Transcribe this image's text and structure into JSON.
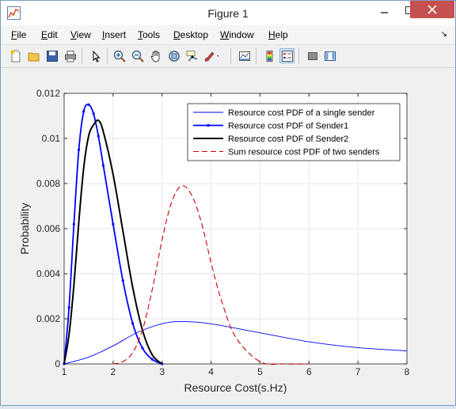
{
  "window": {
    "title": "Figure 1"
  },
  "menu": [
    "File",
    "Edit",
    "View",
    "Insert",
    "Tools",
    "Desktop",
    "Window",
    "Help"
  ],
  "menu_mnemonics": [
    "F",
    "E",
    "V",
    "I",
    "T",
    "D",
    "W",
    "H"
  ],
  "toolbar_icons": [
    "new-figure-icon",
    "open-file-icon",
    "save-icon",
    "print-icon",
    "edit-plot-arrow-icon",
    "zoom-in-icon",
    "zoom-out-icon",
    "pan-hand-icon",
    "rotate-3d-icon",
    "data-cursor-icon",
    "brush-icon",
    "link-plot-icon",
    "insert-colorbar-icon",
    "insert-legend-icon",
    "hide-plot-tools-icon",
    "show-plot-tools-icon"
  ],
  "chart_data": {
    "type": "line",
    "xlabel": "Resource Cost(s.Hz)",
    "ylabel": "Probability",
    "xlim": [
      1,
      8
    ],
    "ylim": [
      0,
      0.012
    ],
    "xticks": [
      "1",
      "2",
      "3",
      "4",
      "5",
      "6",
      "7",
      "8"
    ],
    "yticks": [
      "0",
      "0.002",
      "0.004",
      "0.006",
      "0.008",
      "0.01",
      "0.012"
    ],
    "grid": true,
    "legend_position": "top-right",
    "series": [
      {
        "name": "Resource cost PDF of a single sender",
        "color": "#0000ff",
        "style": "thin",
        "x": [
          1.0,
          1.5,
          2.0,
          2.5,
          3.0,
          3.4,
          4.0,
          5.0,
          6.0,
          7.0,
          8.0
        ],
        "y": [
          0.0,
          0.0003,
          0.0008,
          0.0014,
          0.00178,
          0.00188,
          0.00178,
          0.00138,
          0.00098,
          0.00072,
          0.00058
        ]
      },
      {
        "name": "Resource cost PDF of Sender1",
        "color": "#0000ff",
        "style": "dotted-marker",
        "x": [
          1.0,
          1.1,
          1.2,
          1.3,
          1.4,
          1.5,
          1.6,
          1.7,
          1.8,
          2.0,
          2.2,
          2.4,
          2.6,
          2.8,
          3.0
        ],
        "y": [
          0.0,
          0.0025,
          0.0062,
          0.0095,
          0.0112,
          0.0115,
          0.0111,
          0.0101,
          0.0088,
          0.0062,
          0.0037,
          0.0018,
          0.0007,
          0.0002,
          0.0
        ]
      },
      {
        "name": "Resource cost PDF of Sender2",
        "color": "#000000",
        "style": "thick",
        "x": [
          1.0,
          1.1,
          1.2,
          1.3,
          1.4,
          1.5,
          1.6,
          1.7,
          1.8,
          2.0,
          2.2,
          2.4,
          2.6,
          2.8,
          3.0
        ],
        "y": [
          0.0,
          0.0013,
          0.0035,
          0.0063,
          0.0087,
          0.0101,
          0.0106,
          0.0108,
          0.0103,
          0.0084,
          0.0059,
          0.0034,
          0.0015,
          0.0004,
          0.0
        ]
      },
      {
        "name": "Sum resource cost PDF of two senders",
        "color": "#cc0000",
        "style": "dashed",
        "x": [
          2.0,
          2.2,
          2.4,
          2.6,
          2.8,
          3.0,
          3.2,
          3.4,
          3.6,
          3.8,
          4.0,
          4.2,
          4.5,
          5.0,
          5.5,
          6.0
        ],
        "y": [
          0.0,
          0.0001,
          0.0005,
          0.0015,
          0.0033,
          0.0055,
          0.0072,
          0.0079,
          0.0075,
          0.0063,
          0.0045,
          0.0029,
          0.0012,
          0.0001,
          0.0,
          0.0
        ]
      }
    ]
  }
}
